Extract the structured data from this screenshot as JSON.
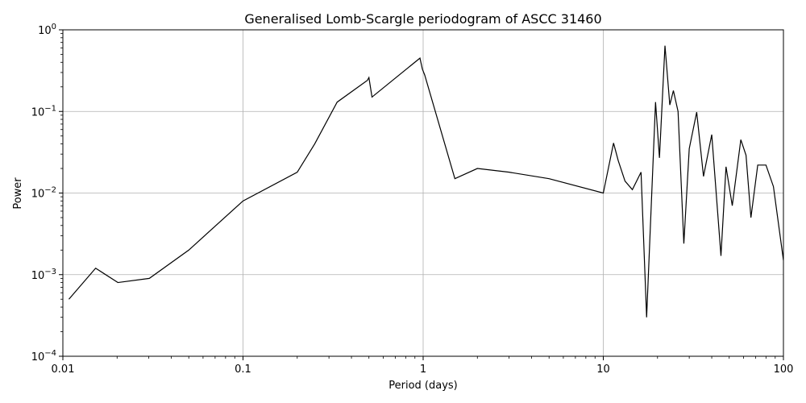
{
  "chart_data": {
    "type": "line",
    "title": "Generalised Lomb-Scargle periodogram of ASCC 31460",
    "xlabel": "Period (days)",
    "ylabel": "Power",
    "xscale": "log",
    "yscale": "log",
    "xlim": [
      0.01,
      100
    ],
    "ylim": [
      0.0001,
      1
    ],
    "grid": true,
    "line_color": "#000000",
    "x_tick_labels": [
      "0.01",
      "0.1",
      "1",
      "10",
      "100"
    ],
    "y_tick_labels": [
      "10^-4",
      "10^-3",
      "10^-2",
      "10^-1",
      "10^0"
    ],
    "series": [
      {
        "x": [
          0.0108,
          0.0152,
          0.0202,
          0.0302,
          0.05,
          0.1,
          0.2,
          0.25,
          0.333,
          0.49,
          0.5,
          0.52,
          0.96,
          0.99,
          1.02,
          1.5,
          2.0,
          3.0,
          5.0,
          10.0,
          11.4,
          12.1,
          13.2,
          14.5,
          16.2,
          17.4,
          19.5,
          20.5,
          22.0,
          23.4,
          24.5,
          26.0,
          28.0,
          30.0,
          33.0,
          36.0,
          40.0,
          45.0,
          48.0,
          52.0,
          58.0,
          62.0,
          66.0,
          72.0,
          80.0,
          88.0,
          100.0
        ],
        "y": [
          0.0005,
          0.0012,
          0.0008,
          0.0009,
          0.002,
          0.008,
          0.018,
          0.04,
          0.13,
          0.24,
          0.26,
          0.15,
          0.45,
          0.33,
          0.28,
          0.015,
          0.02,
          0.018,
          0.015,
          0.01,
          0.041,
          0.025,
          0.014,
          0.011,
          0.018,
          0.0003,
          0.13,
          0.027,
          0.64,
          0.12,
          0.18,
          0.1,
          0.0024,
          0.035,
          0.098,
          0.016,
          0.052,
          0.0017,
          0.021,
          0.007,
          0.045,
          0.029,
          0.005,
          0.022,
          0.022,
          0.012,
          0.0015
        ]
      }
    ]
  }
}
